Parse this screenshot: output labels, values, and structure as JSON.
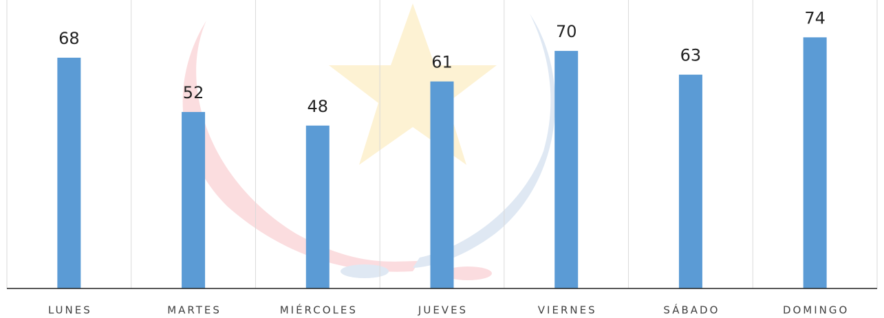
{
  "chart_data": {
    "type": "bar",
    "categories": [
      "LUNES",
      "MARTES",
      "MIÉRCOLES",
      "JUEVES",
      "VIERNES",
      "SÁBADO",
      "DOMINGO"
    ],
    "values": [
      68,
      52,
      48,
      61,
      70,
      63,
      74
    ],
    "color": "#5b9bd5",
    "ylim": [
      0,
      85
    ]
  }
}
